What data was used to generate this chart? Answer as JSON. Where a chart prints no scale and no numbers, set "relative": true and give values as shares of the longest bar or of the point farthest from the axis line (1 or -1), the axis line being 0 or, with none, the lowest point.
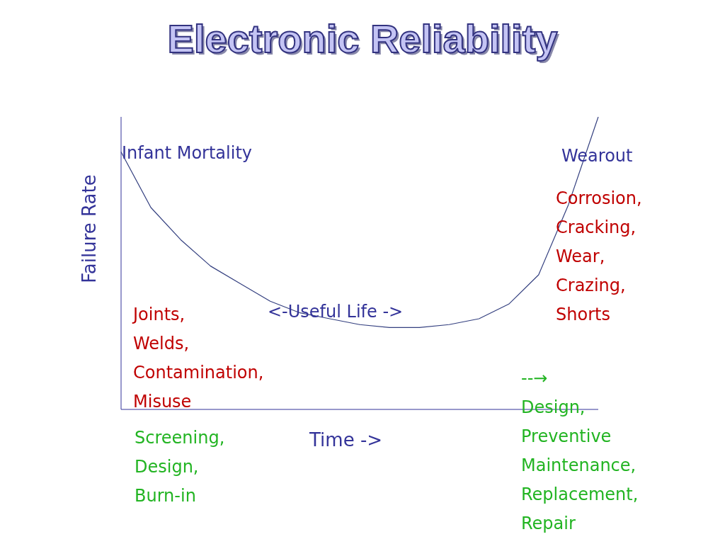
{
  "chart_data": {
    "type": "line",
    "title": "Electronic Reliability",
    "xlabel": "Time ->",
    "ylabel": "Failure Rate",
    "relative": true,
    "color": "#333f7f",
    "marker": "none",
    "line_style": "solid",
    "grid": false,
    "categories": [
      null,
      null,
      null,
      null,
      null,
      null,
      null,
      null,
      null,
      null,
      null,
      null,
      null,
      null,
      null,
      null,
      null
    ],
    "values": [
      0.88,
      0.69,
      0.58,
      0.49,
      0.43,
      0.37,
      0.33,
      0.31,
      0.29,
      0.28,
      0.28,
      0.29,
      0.31,
      0.36,
      0.46,
      0.7,
      1.0
    ],
    "annotations": [
      "Infant Mortality",
      "Wearout",
      "<-Useful Life ->",
      "Corrosion,\nCracking,\nWear,\nCrazing,\nShorts",
      "Joints,\nWelds,\nContamination,\nMisuse",
      "Screening,\nDesign,\nBurn-in",
      "--→\nDesign,\nPreventive\nMaintenance,\nReplacement,\nRepair"
    ]
  }
}
